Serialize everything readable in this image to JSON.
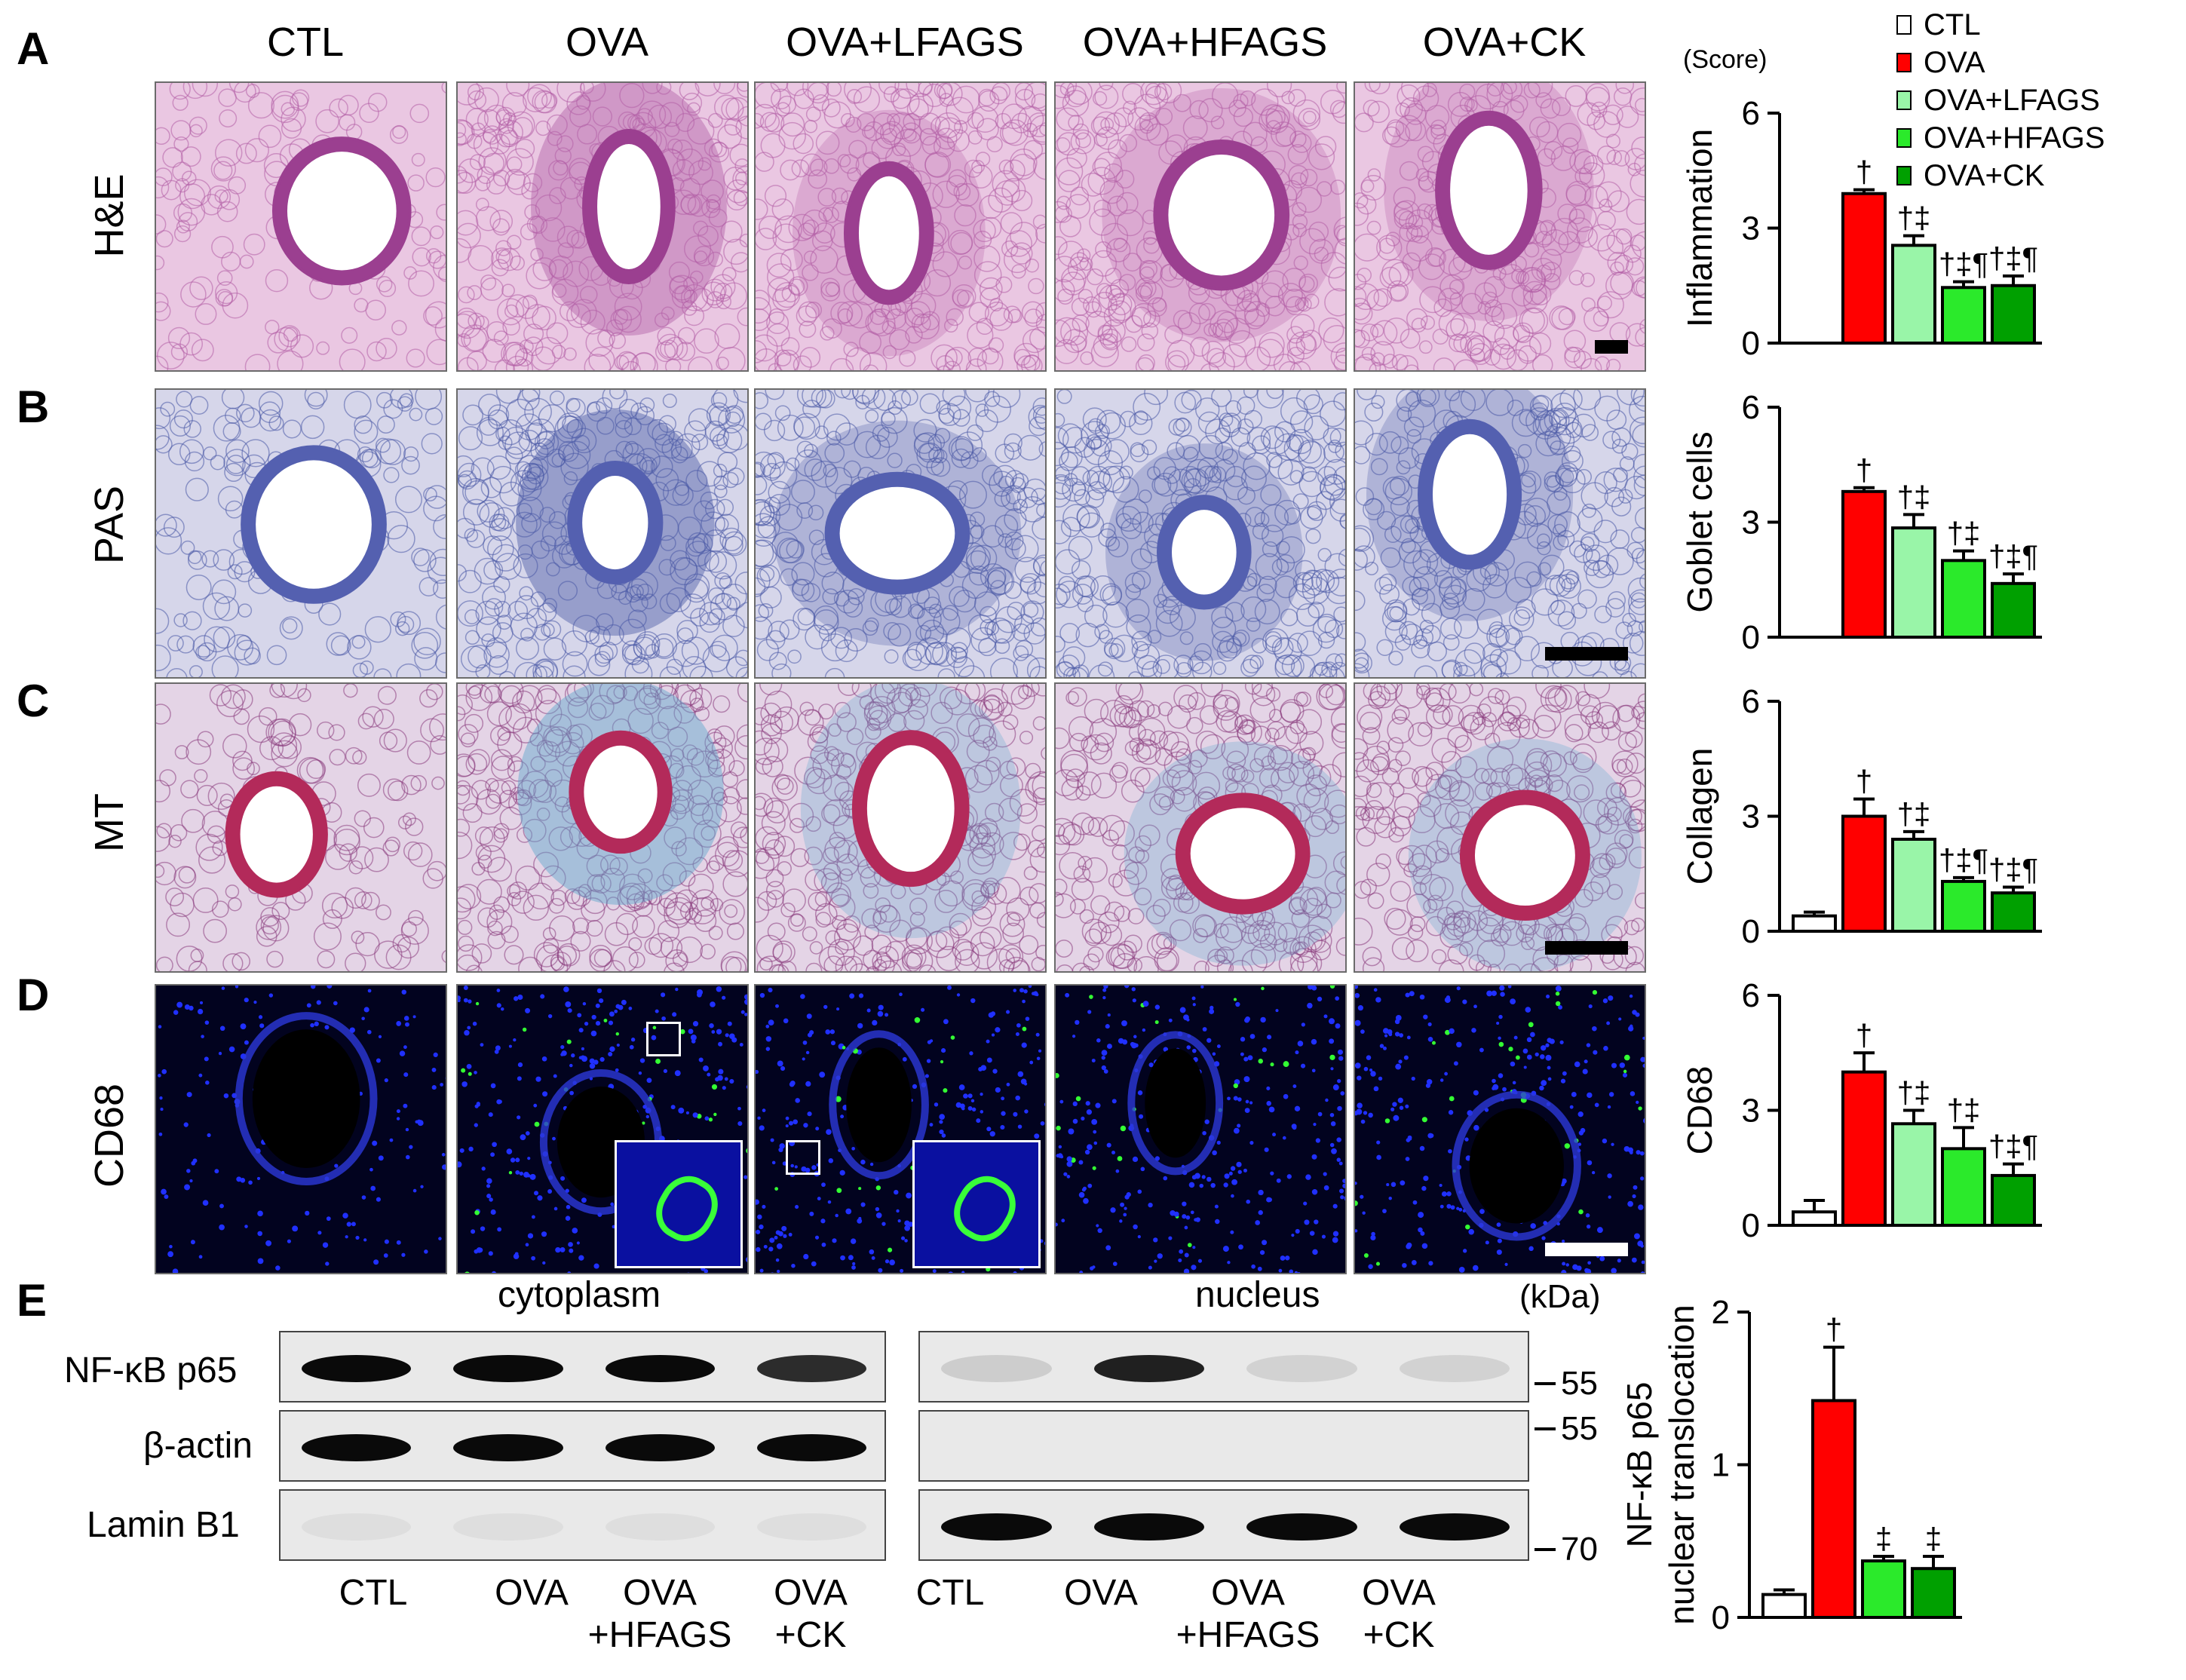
{
  "panels": {
    "letters": [
      "A",
      "B",
      "C",
      "D",
      "E"
    ],
    "columns": [
      "CTL",
      "OVA",
      "OVA+LFAGS",
      "OVA+HFAGS",
      "OVA+CK"
    ],
    "rows": [
      "H&E",
      "PAS",
      "MT",
      "CD68"
    ]
  },
  "colors": {
    "CTL": "#ffffff",
    "OVA": "#ff0000",
    "OVA+LFAGS": "#99f5a8",
    "OVA+HFAGS": "#2bea2b",
    "OVA+CK": "#00a000",
    "he_bg": "#eac7e2",
    "pas_bg": "#d6d6ea",
    "mt_bg": "#e4d4e6",
    "cd68_bg": "#02031f"
  },
  "legend": {
    "score_label": "(Score)",
    "items": [
      "CTL",
      "OVA",
      "OVA+LFAGS",
      "OVA+HFAGS",
      "OVA+CK"
    ]
  },
  "chart_data": [
    {
      "type": "bar",
      "ylabel": "Inflammation",
      "ylim": [
        0,
        6
      ],
      "yticks": [
        0,
        3,
        6
      ],
      "categories": [
        "CTL",
        "OVA",
        "OVA+LFAGS",
        "OVA+HFAGS",
        "OVA+CK"
      ],
      "values": [
        0,
        3.9,
        2.55,
        1.45,
        1.5
      ],
      "errors": [
        0,
        0.1,
        0.25,
        0.15,
        0.25
      ],
      "annotations": [
        "",
        "†",
        "†‡",
        "†‡¶",
        "†‡¶"
      ]
    },
    {
      "type": "bar",
      "ylabel": "Goblet cells",
      "ylim": [
        0,
        6
      ],
      "yticks": [
        0,
        3,
        6
      ],
      "categories": [
        "CTL",
        "OVA",
        "OVA+LFAGS",
        "OVA+HFAGS",
        "OVA+CK"
      ],
      "values": [
        0,
        3.8,
        2.85,
        2.0,
        1.4
      ],
      "errors": [
        0,
        0.1,
        0.35,
        0.25,
        0.25
      ],
      "annotations": [
        "",
        "†",
        "†‡",
        "†‡",
        "†‡¶"
      ]
    },
    {
      "type": "bar",
      "ylabel": "Collagen",
      "ylim": [
        0,
        6
      ],
      "yticks": [
        0,
        3,
        6
      ],
      "categories": [
        "CTL",
        "OVA",
        "OVA+LFAGS",
        "OVA+HFAGS",
        "OVA+CK"
      ],
      "values": [
        0.4,
        3.0,
        2.4,
        1.3,
        1.0
      ],
      "errors": [
        0.1,
        0.45,
        0.2,
        0.1,
        0.15
      ],
      "annotations": [
        "",
        "†",
        "†‡",
        "†‡¶",
        "†‡¶"
      ]
    },
    {
      "type": "bar",
      "ylabel": "CD68",
      "ylim": [
        0,
        6
      ],
      "yticks": [
        0,
        3,
        6
      ],
      "categories": [
        "CTL",
        "OVA",
        "OVA+LFAGS",
        "OVA+HFAGS",
        "OVA+CK"
      ],
      "values": [
        0.35,
        4.0,
        2.65,
        2.0,
        1.3
      ],
      "errors": [
        0.3,
        0.5,
        0.35,
        0.55,
        0.3
      ],
      "annotations": [
        "",
        "†",
        "†‡",
        "†‡",
        "†‡¶"
      ]
    },
    {
      "type": "bar",
      "ylabel_lines": [
        "NF-κB p65",
        "nuclear translocation"
      ],
      "ylim": [
        0,
        2
      ],
      "yticks": [
        0,
        1,
        2
      ],
      "categories": [
        "CTL",
        "OVA",
        "OVA+HFAGS",
        "OVA+CK"
      ],
      "values": [
        0.15,
        1.42,
        0.37,
        0.32
      ],
      "errors": [
        0.03,
        0.35,
        0.03,
        0.08
      ],
      "annotations": [
        "",
        "†",
        "‡",
        "‡"
      ]
    }
  ],
  "blot": {
    "cytoplasm_label": "cytoplasm",
    "nucleus_label": "nucleus",
    "kda_label": "(kDa)",
    "rows": [
      "NF-κB p65",
      "β-actin",
      "Lamin B1"
    ],
    "mw_markers": [
      "55",
      "55",
      "70"
    ],
    "lanes_cyto": [
      {
        "line1": "CTL",
        "line2": ""
      },
      {
        "line1": "OVA",
        "line2": ""
      },
      {
        "line1": "OVA",
        "line2": "+HFAGS"
      },
      {
        "line1": "OVA",
        "line2": "+CK"
      }
    ],
    "lanes_nuc": [
      {
        "line1": "CTL",
        "line2": ""
      },
      {
        "line1": "OVA",
        "line2": ""
      },
      {
        "line1": "OVA",
        "line2": "+HFAGS"
      },
      {
        "line1": "OVA",
        "line2": "+CK"
      }
    ]
  }
}
